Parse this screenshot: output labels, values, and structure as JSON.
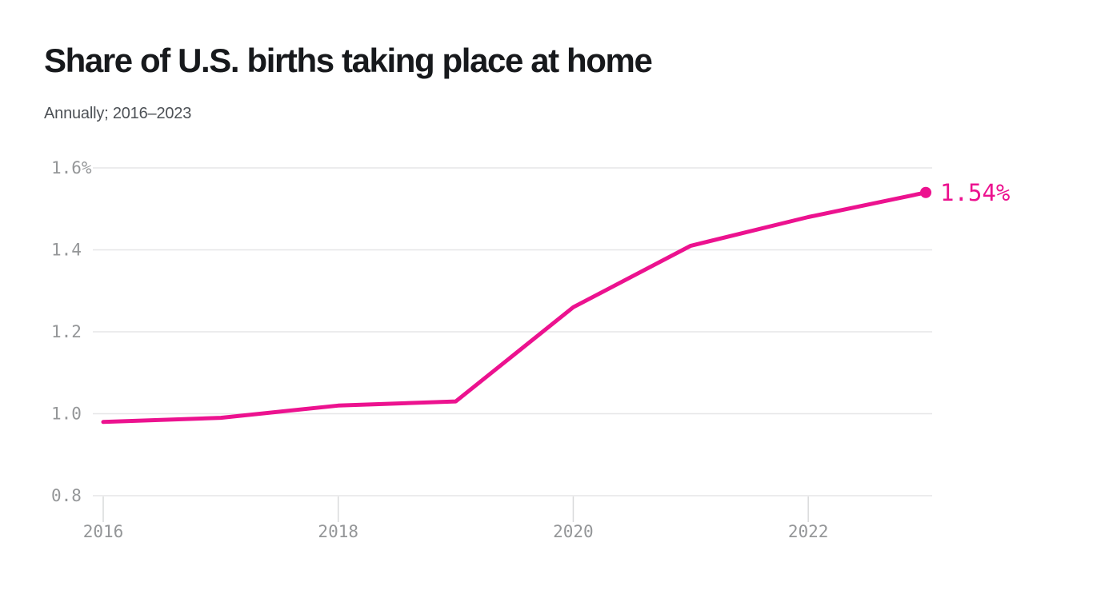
{
  "header": {
    "title": "Share of U.S. births taking place at home",
    "subtitle": "Annually; 2016–2023"
  },
  "chart_data": {
    "type": "line",
    "title": "Share of U.S. births taking place at home",
    "subtitle": "Annually; 2016–2023",
    "x": [
      2016,
      2017,
      2018,
      2019,
      2020,
      2021,
      2022,
      2023
    ],
    "series": [
      {
        "name": "Share of U.S. births taking place at home (%)",
        "values": [
          0.98,
          0.99,
          1.02,
          1.03,
          1.26,
          1.41,
          1.48,
          1.54
        ]
      }
    ],
    "end_label": "1.54%",
    "xlim": [
      2016,
      2023
    ],
    "ylim": [
      0.8,
      1.6
    ],
    "y_ticks": [
      {
        "value": 1.6,
        "label": "1.6%"
      },
      {
        "value": 1.4,
        "label": "1.4"
      },
      {
        "value": 1.2,
        "label": "1.2"
      },
      {
        "value": 1.0,
        "label": "1.0"
      },
      {
        "value": 0.8,
        "label": "0.8"
      }
    ],
    "x_ticks": [
      {
        "value": 2016,
        "label": "2016"
      },
      {
        "value": 2018,
        "label": "2018"
      },
      {
        "value": 2020,
        "label": "2020"
      },
      {
        "value": 2022,
        "label": "2022"
      }
    ],
    "grid": "horizontal",
    "legend": "none"
  },
  "colors": {
    "background": "#ffffff",
    "accent_pink": "#ec128f",
    "title_text": "#17191c",
    "subtitle_text": "#4d5156",
    "axis_text": "#949698",
    "gridline": "#e6e6e7",
    "tick_mark": "#d9dadb"
  }
}
